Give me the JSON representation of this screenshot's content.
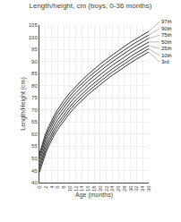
{
  "chart_data": {
    "type": "line",
    "title": "Length/height, cm (boys, 0-36 months)",
    "xlabel": "Age (months)",
    "ylabel": "Length/Height (cm)",
    "x": [
      0,
      1,
      2,
      3,
      4,
      5,
      6,
      8,
      10,
      12,
      14,
      16,
      18,
      20,
      22,
      24,
      26,
      28,
      30,
      32,
      34,
      36
    ],
    "series": [
      {
        "name": "97th",
        "values": [
          52.0,
          56.5,
          60.0,
          63.0,
          65.7,
          68.0,
          70.1,
          73.8,
          77.0,
          79.8,
          82.3,
          84.6,
          86.8,
          88.9,
          90.8,
          92.7,
          94.5,
          96.2,
          97.9,
          99.5,
          101.0,
          102.4
        ]
      },
      {
        "name": "90th",
        "values": [
          51.0,
          55.4,
          58.9,
          61.8,
          64.5,
          66.8,
          68.9,
          72.5,
          75.7,
          78.5,
          81.0,
          83.3,
          85.4,
          87.5,
          89.4,
          91.3,
          93.1,
          94.8,
          96.4,
          98.0,
          99.5,
          100.9
        ]
      },
      {
        "name": "75th",
        "values": [
          49.7,
          54.1,
          57.6,
          60.5,
          63.2,
          65.5,
          67.5,
          71.1,
          74.3,
          77.1,
          79.6,
          81.9,
          84.0,
          86.1,
          88.0,
          89.9,
          91.7,
          93.4,
          95.0,
          96.6,
          98.1,
          99.5
        ]
      },
      {
        "name": "50th",
        "values": [
          48.3,
          52.6,
          56.0,
          59.0,
          61.7,
          64.0,
          66.0,
          69.6,
          72.8,
          75.6,
          78.1,
          80.4,
          82.5,
          84.6,
          86.5,
          88.4,
          90.2,
          91.9,
          93.5,
          95.1,
          96.6,
          98.0
        ]
      },
      {
        "name": "25th",
        "values": [
          46.8,
          51.1,
          54.5,
          57.5,
          60.2,
          62.5,
          64.5,
          68.1,
          71.3,
          74.1,
          76.6,
          78.9,
          81.0,
          83.1,
          85.0,
          86.9,
          88.7,
          90.4,
          92.0,
          93.6,
          95.1,
          96.5
        ]
      },
      {
        "name": "10th",
        "values": [
          45.6,
          49.8,
          53.2,
          56.2,
          58.9,
          61.2,
          63.2,
          66.8,
          70.0,
          72.8,
          75.3,
          77.6,
          79.7,
          81.8,
          83.7,
          85.6,
          87.4,
          89.1,
          90.7,
          92.3,
          93.8,
          95.2
        ]
      },
      {
        "name": "3rd",
        "values": [
          44.2,
          48.5,
          51.9,
          54.9,
          57.6,
          59.9,
          61.9,
          65.5,
          68.7,
          71.5,
          74.0,
          76.3,
          78.4,
          80.5,
          82.4,
          84.3,
          86.1,
          87.8,
          89.4,
          91.0,
          92.5,
          93.9
        ]
      }
    ],
    "color": "#333333",
    "xlim": [
      0,
      36
    ],
    "ylim": [
      40,
      105
    ],
    "xticks": [
      0,
      2,
      4,
      6,
      8,
      10,
      12,
      14,
      16,
      18,
      20,
      22,
      24,
      26,
      28,
      30,
      32,
      34,
      36
    ],
    "yticks": [
      40,
      45,
      50,
      55,
      60,
      65,
      70,
      75,
      80,
      85,
      90,
      95,
      100,
      105
    ],
    "grid": true
  }
}
